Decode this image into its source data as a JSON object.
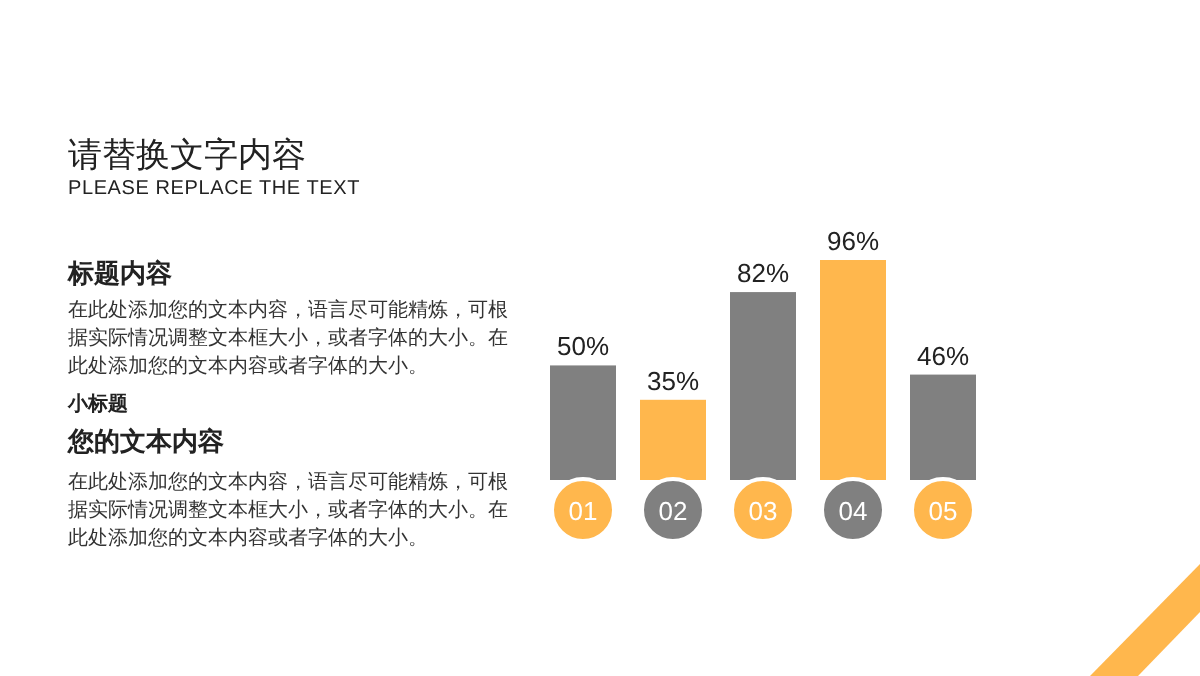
{
  "chart_data": {
    "type": "bar",
    "title": "请替换文字内容",
    "subtitle": "PLEASE REPLACE THE TEXT",
    "categories": [
      "01",
      "02",
      "03",
      "04",
      "05"
    ],
    "values": [
      50,
      35,
      82,
      96,
      46
    ],
    "value_labels": [
      "50%",
      "35%",
      "82%",
      "96%",
      "46%"
    ],
    "colors": [
      "#808080",
      "#ffb74d",
      "#808080",
      "#ffb74d",
      "#808080"
    ],
    "annotations": [
      "标题内容",
      "在此处添加您的文本内容，语言尽可能精炼，可根据实际情况调整文本框大小，或者字体的大小。在此处添加您的文本内容或者字体的大小。",
      "小标题",
      "您的文本内容",
      "在此处添加您的文本内容，语言尽可能精炼，可根据实际情况调整文本框大小，或者字体的大小。在此处添加您的文本内容或者字体的大小。"
    ]
  }
}
